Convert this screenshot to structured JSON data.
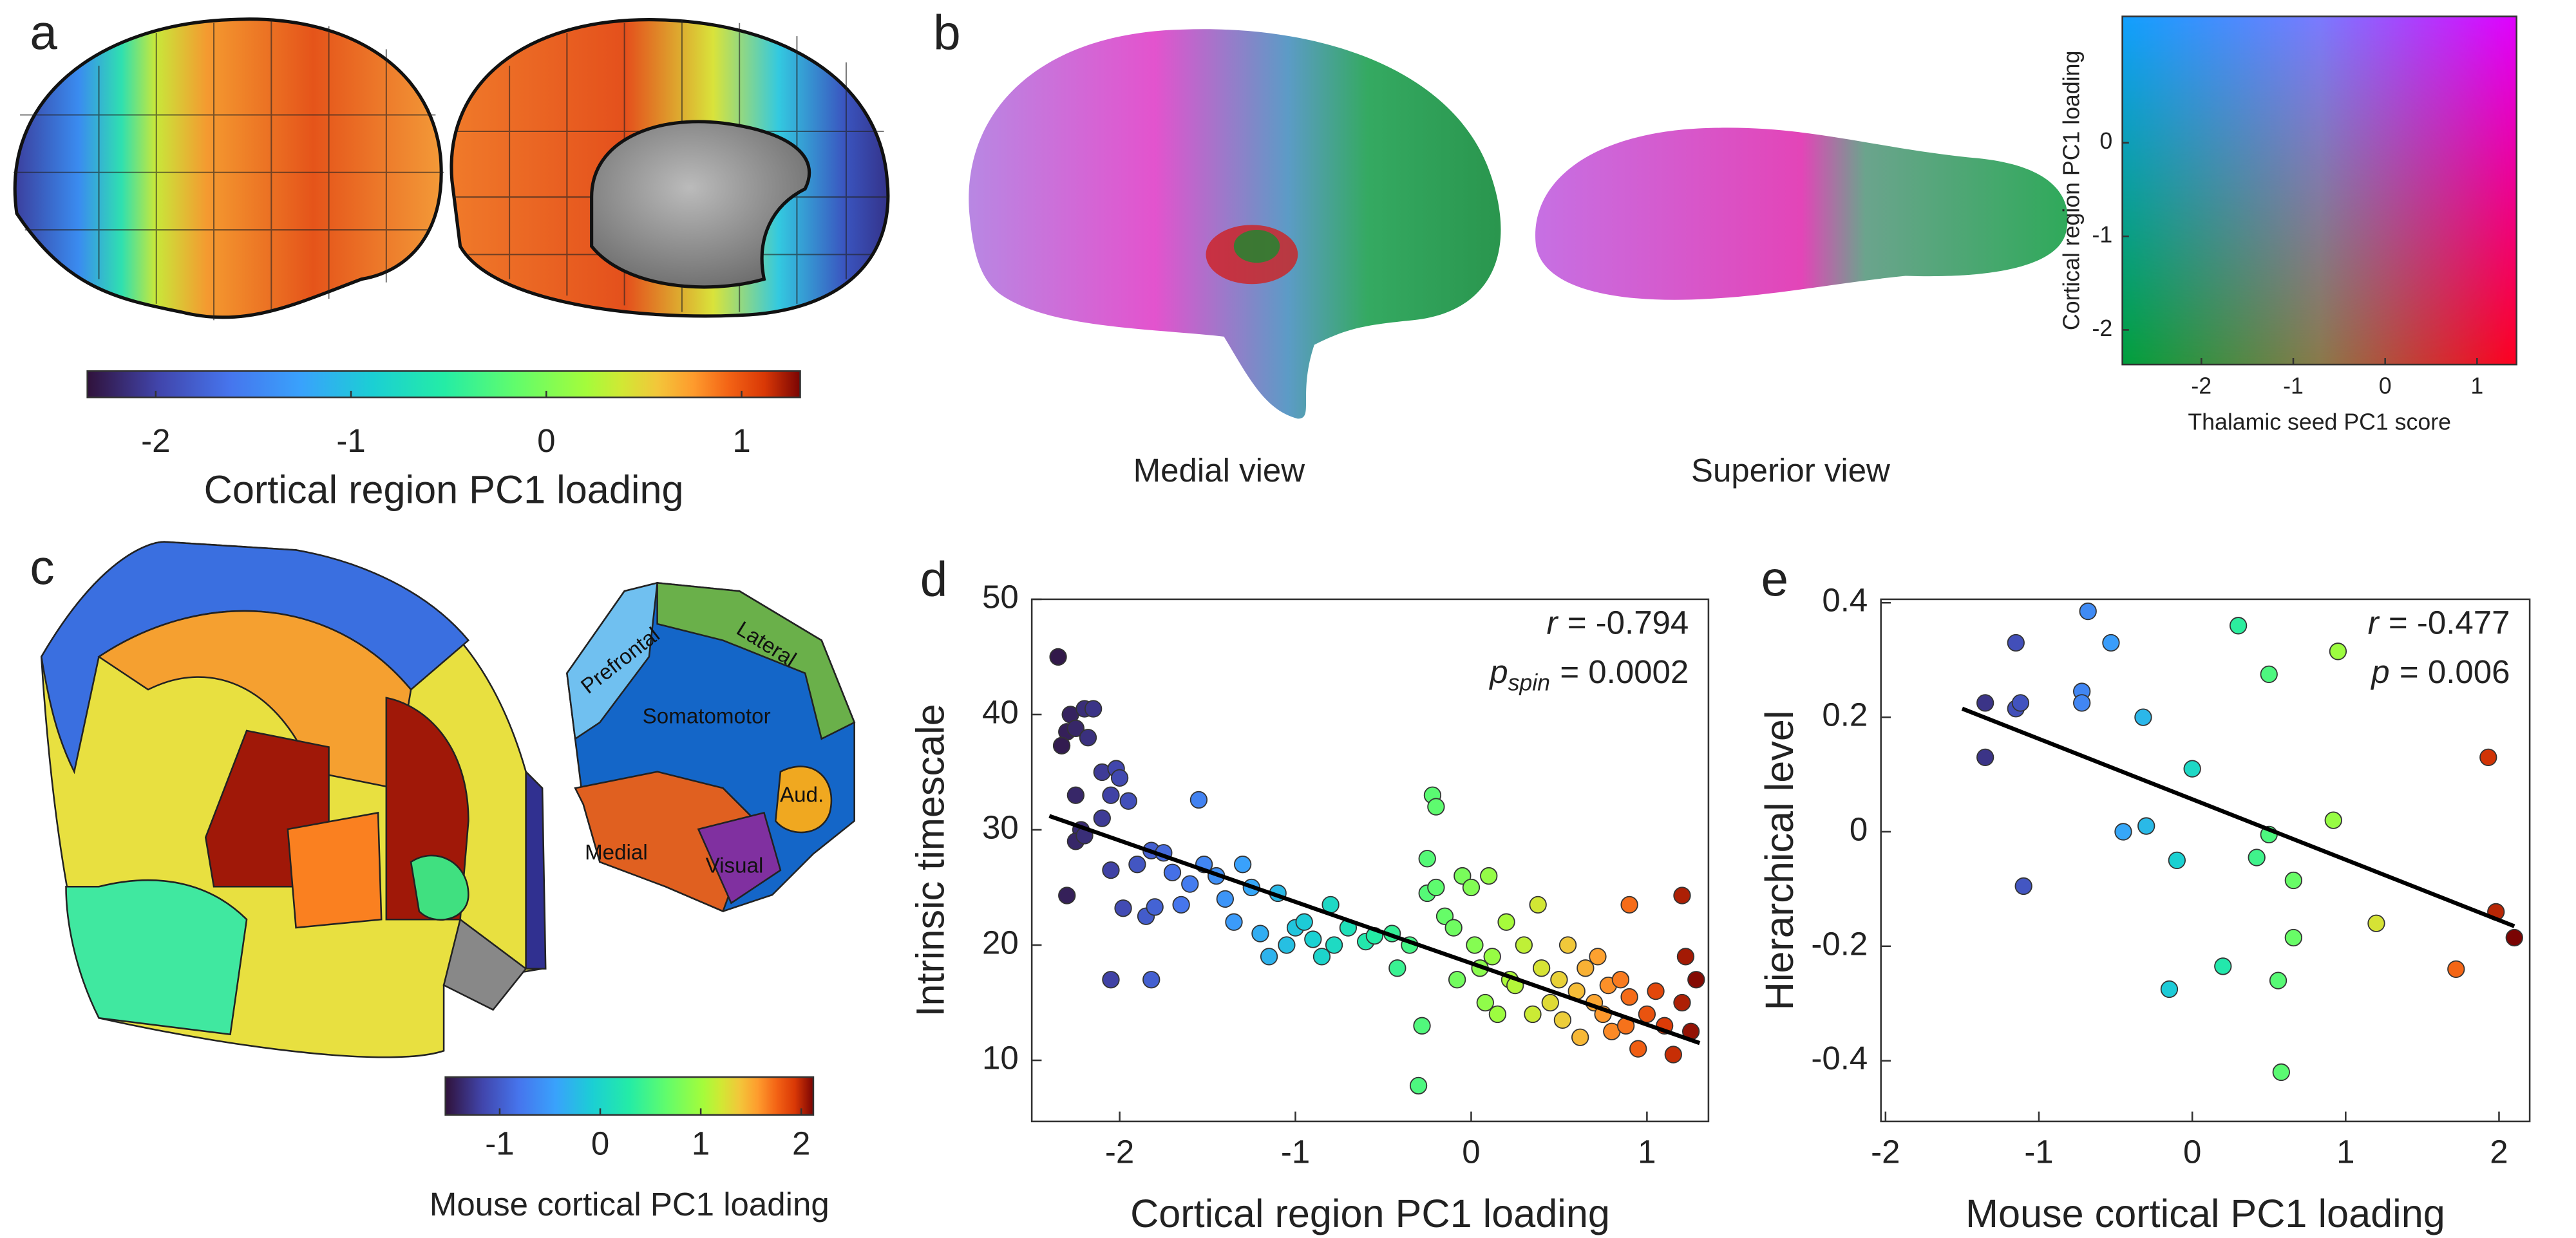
{
  "colormap": [
    [
      0,
      "#30123b"
    ],
    [
      0.1,
      "#4145ab"
    ],
    [
      0.2,
      "#4675ed"
    ],
    [
      0.3,
      "#39a2fc"
    ],
    [
      0.4,
      "#1bcfd4"
    ],
    [
      0.5,
      "#24eca6"
    ],
    [
      0.6,
      "#61fc6c"
    ],
    [
      0.7,
      "#a4fc3b"
    ],
    [
      0.75,
      "#d1e834"
    ],
    [
      0.8,
      "#f3c63a"
    ],
    [
      0.85,
      "#fe9b2d"
    ],
    [
      0.9,
      "#f36315"
    ],
    [
      0.95,
      "#d93806"
    ],
    [
      1,
      "#7a0403"
    ]
  ],
  "panels": {
    "a": {
      "label": "a",
      "colorbar": {
        "label": "Cortical region PC1 loading",
        "lim": [
          -2.35,
          1.3
        ],
        "ticks": [
          -2,
          -1,
          0,
          1
        ]
      }
    },
    "b": {
      "label": "b",
      "views": [
        "Medial view",
        "Superior view"
      ],
      "legend": {
        "xlabel": "Thalamic seed PC1 score",
        "ylabel": "Cortical region PC1 loading",
        "xlim": [
          -2.86,
          1.43
        ],
        "ylim": [
          -2.37,
          1.35
        ],
        "xticks": [
          -2,
          -1,
          0,
          1
        ],
        "yticks": [
          -2,
          -1,
          0
        ]
      }
    },
    "c": {
      "label": "c",
      "regions": [
        "Prefrontal",
        "Lateral",
        "Somatomotor",
        "Aud.",
        "Medial",
        "Visual"
      ],
      "colorbar": {
        "label": "Mouse cortical PC1 loading",
        "lim": [
          -1.54,
          2.12
        ],
        "ticks": [
          -1,
          0,
          1,
          2
        ]
      }
    }
  },
  "chart_data": [
    {
      "type": "scatter",
      "label": "d",
      "xlabel": "Cortical region PC1 loading",
      "ylabel": "Intrinsic timescale",
      "x": [
        -2.35,
        -2.3,
        -2.28,
        -2.33,
        -2.25,
        -2.2,
        -2.18,
        -2.15,
        -2.25,
        -2.22,
        -2.25,
        -2.2,
        -2.3,
        -2.1,
        -2.02,
        -2.0,
        -2.05,
        -1.95,
        -2.1,
        -2.05,
        -1.98,
        -1.9,
        -1.85,
        -1.8,
        -1.82,
        -1.75,
        -1.7,
        -1.65,
        -1.6,
        -1.55,
        -2.05,
        -1.82,
        -1.52,
        -1.45,
        -1.4,
        -1.35,
        -1.3,
        -1.25,
        -1.2,
        -1.15,
        -1.1,
        -1.05,
        -1.0,
        -0.95,
        -0.9,
        -0.85,
        -0.8,
        -0.78,
        -0.7,
        -0.6,
        -0.55,
        -0.45,
        -0.42,
        -0.35,
        -0.3,
        -0.22,
        -0.2,
        -0.25,
        -0.25,
        -0.2,
        -0.28,
        -0.15,
        -0.1,
        -0.08,
        -0.05,
        0.0,
        0.02,
        0.05,
        0.08,
        0.1,
        0.12,
        0.15,
        0.2,
        0.22,
        0.25,
        0.3,
        0.35,
        0.38,
        0.4,
        0.45,
        0.5,
        0.52,
        0.55,
        0.6,
        0.62,
        0.65,
        0.7,
        0.72,
        0.75,
        0.78,
        0.8,
        0.85,
        0.88,
        0.9,
        0.9,
        0.95,
        1.0,
        1.05,
        1.1,
        1.15,
        1.2,
        1.22,
        1.2,
        1.25,
        1.28
      ],
      "y": [
        45,
        38.5,
        40,
        37.3,
        38.8,
        40.5,
        38,
        40.5,
        33,
        30,
        29,
        29.5,
        24.3,
        35,
        35.3,
        34.5,
        33,
        32.5,
        31,
        26.5,
        23.2,
        27,
        22.5,
        23.3,
        28.2,
        28,
        26.3,
        23.5,
        25.3,
        32.6,
        17,
        17,
        27,
        26,
        24,
        22,
        27,
        25,
        21,
        19,
        24.5,
        20,
        21.5,
        22,
        20.5,
        19,
        23.5,
        20,
        21.5,
        20.3,
        20.8,
        21,
        18,
        20,
        7.8,
        33,
        32,
        27.5,
        24.5,
        25,
        13,
        22.5,
        21.5,
        17,
        26,
        25,
        20,
        18,
        15,
        26,
        19,
        14,
        22,
        17,
        16.5,
        20,
        14,
        23.5,
        18,
        15,
        17,
        13.5,
        20,
        16,
        12,
        18,
        15,
        19,
        14,
        16.5,
        12.5,
        17,
        13,
        23.5,
        15.5,
        11,
        14,
        16,
        13,
        10.5,
        24.3,
        19,
        15,
        12.5,
        17
      ],
      "xlim": [
        -2.5,
        1.35
      ],
      "ylim": [
        4.7,
        50
      ],
      "xticks": [
        -2,
        -1,
        0,
        1
      ],
      "yticks": [
        10,
        20,
        30,
        40,
        50
      ],
      "color_range": [
        -2.4,
        1.3
      ],
      "fit": {
        "x": [
          -2.4,
          1.3
        ],
        "y": [
          31.2,
          11.5
        ]
      },
      "stats": [
        {
          "symbol": "r",
          "text": "= -0.794"
        },
        {
          "symbol": "p",
          "subscript": "spin",
          "text": "= 0.0002"
        }
      ]
    },
    {
      "type": "scatter",
      "label": "e",
      "xlabel": "Mouse cortical PC1 loading",
      "ylabel": "Hierarchical level",
      "x": [
        -1.35,
        -1.35,
        -1.15,
        -1.15,
        -1.12,
        -1.1,
        -0.68,
        -0.72,
        -0.72,
        -0.53,
        -0.32,
        -0.45,
        -0.3,
        -0.1,
        -0.15,
        0.0,
        0.2,
        0.3,
        0.42,
        0.5,
        0.5,
        0.56,
        0.58,
        0.66,
        0.66,
        0.95,
        0.92,
        1.2,
        1.72,
        1.93,
        1.98,
        2.1
      ],
      "y": [
        0.225,
        0.13,
        0.33,
        0.215,
        0.225,
        -0.095,
        0.385,
        0.245,
        0.225,
        0.33,
        0.2,
        0.0,
        0.01,
        -0.05,
        -0.275,
        0.11,
        -0.235,
        0.36,
        -0.045,
        0.275,
        -0.005,
        -0.26,
        -0.42,
        -0.085,
        -0.185,
        0.315,
        0.02,
        -0.16,
        -0.24,
        0.13,
        -0.14,
        -0.185
      ],
      "xlim": [
        -2.03,
        2.2
      ],
      "ylim": [
        -0.506,
        0.406
      ],
      "xticks": [
        -2,
        -1,
        0,
        1,
        2
      ],
      "yticks": [
        -0.4,
        -0.2,
        0,
        0.2,
        0.4
      ],
      "color_range": [
        -1.6,
        2.1
      ],
      "fit": {
        "x": [
          -1.5,
          2.1
        ],
        "y": [
          0.215,
          -0.165
        ]
      },
      "stats": [
        {
          "symbol": "r",
          "text": "= -0.477"
        },
        {
          "symbol": "p",
          "text": "= 0.006"
        }
      ]
    }
  ]
}
